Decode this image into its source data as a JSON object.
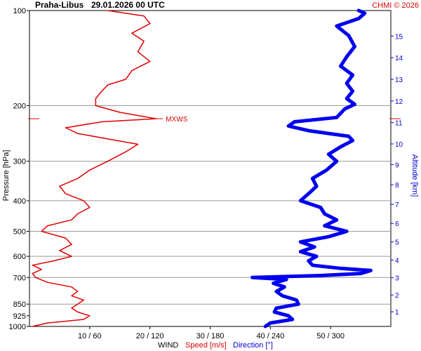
{
  "header": {
    "station": "Praha-Libus",
    "datetime": "29.01.2026 00 UTC",
    "credit": "CHMI © 2026"
  },
  "chart_data": {
    "type": "line",
    "title": "Praha-Libus   29.01.2026 00 UTC",
    "left_axis": {
      "label": "Pressure [hPa]",
      "scale": "log",
      "range": [
        1000,
        100
      ],
      "ticks": [
        100,
        200,
        300,
        400,
        500,
        600,
        700,
        850,
        925,
        1000
      ],
      "gridlines": [
        200,
        300,
        400,
        500,
        600,
        700,
        850
      ]
    },
    "right_axis": {
      "label": "Altitude [km]",
      "ticks": [
        1,
        2,
        3,
        4,
        5,
        6,
        7,
        8,
        9,
        10,
        11,
        12,
        13,
        14,
        15
      ]
    },
    "x_axis": {
      "prefix": "WIND",
      "speed_label": "Speed [m/s]",
      "direction_label": "Direction [°]",
      "ticks": [
        "10 / 60",
        "20 / 120",
        "30 / 180",
        "40 / 240",
        "50 / 300"
      ],
      "speed_range": [
        0,
        60
      ],
      "direction_range": [
        0,
        360
      ]
    },
    "annotation": {
      "label": "MXWS",
      "pressure": 220
    },
    "series": [
      {
        "name": "Speed [m/s]",
        "unit": "m/s",
        "color": "#e00000",
        "points": [
          [
            1000,
            0.5
          ],
          [
            975,
            3
          ],
          [
            950,
            9
          ],
          [
            925,
            10
          ],
          [
            900,
            8
          ],
          [
            875,
            7
          ],
          [
            850,
            8
          ],
          [
            825,
            9
          ],
          [
            800,
            7
          ],
          [
            775,
            8
          ],
          [
            750,
            7
          ],
          [
            725,
            3
          ],
          [
            700,
            1
          ],
          [
            680,
            0.5
          ],
          [
            660,
            2
          ],
          [
            640,
            0.5
          ],
          [
            620,
            4
          ],
          [
            600,
            7
          ],
          [
            575,
            5
          ],
          [
            550,
            7
          ],
          [
            525,
            6
          ],
          [
            500,
            2
          ],
          [
            480,
            3
          ],
          [
            460,
            7
          ],
          [
            440,
            8
          ],
          [
            420,
            10
          ],
          [
            400,
            9
          ],
          [
            380,
            6
          ],
          [
            360,
            5
          ],
          [
            340,
            8
          ],
          [
            320,
            10
          ],
          [
            300,
            13
          ],
          [
            280,
            16
          ],
          [
            265,
            18
          ],
          [
            255,
            13
          ],
          [
            245,
            8
          ],
          [
            235,
            6
          ],
          [
            225,
            12
          ],
          [
            220,
            21
          ],
          [
            210,
            15
          ],
          [
            200,
            11
          ],
          [
            190,
            11
          ],
          [
            180,
            12
          ],
          [
            172,
            13
          ],
          [
            165,
            16
          ],
          [
            155,
            17
          ],
          [
            145,
            20
          ],
          [
            135,
            18
          ],
          [
            125,
            19
          ],
          [
            118,
            17
          ],
          [
            110,
            20
          ],
          [
            104,
            19
          ],
          [
            100,
            13
          ]
        ]
      },
      {
        "name": "Direction [°]",
        "unit": "°",
        "color": "#0000ee",
        "points": [
          [
            1000,
            235
          ],
          [
            975,
            240
          ],
          [
            950,
            262
          ],
          [
            925,
            258
          ],
          [
            900,
            244
          ],
          [
            875,
            246
          ],
          [
            850,
            268
          ],
          [
            825,
            266
          ],
          [
            800,
            252
          ],
          [
            775,
            246
          ],
          [
            750,
            254
          ],
          [
            730,
            243
          ],
          [
            710,
            256
          ],
          [
            700,
            222
          ],
          [
            690,
            290
          ],
          [
            680,
            330
          ],
          [
            665,
            340
          ],
          [
            655,
            310
          ],
          [
            640,
            282
          ],
          [
            620,
            278
          ],
          [
            600,
            286
          ],
          [
            580,
            270
          ],
          [
            560,
            284
          ],
          [
            540,
            270
          ],
          [
            520,
            298
          ],
          [
            500,
            316
          ],
          [
            480,
            294
          ],
          [
            460,
            306
          ],
          [
            440,
            294
          ],
          [
            420,
            290
          ],
          [
            400,
            270
          ],
          [
            380,
            278
          ],
          [
            360,
            286
          ],
          [
            340,
            282
          ],
          [
            320,
            296
          ],
          [
            300,
            306
          ],
          [
            285,
            298
          ],
          [
            270,
            310
          ],
          [
            258,
            322
          ],
          [
            250,
            318
          ],
          [
            240,
            278
          ],
          [
            232,
            258
          ],
          [
            225,
            264
          ],
          [
            218,
            306
          ],
          [
            205,
            314
          ],
          [
            198,
            324
          ],
          [
            190,
            316
          ],
          [
            180,
            322
          ],
          [
            170,
            316
          ],
          [
            160,
            322
          ],
          [
            150,
            310
          ],
          [
            140,
            316
          ],
          [
            130,
            324
          ],
          [
            120,
            318
          ],
          [
            112,
            306
          ],
          [
            106,
            328
          ],
          [
            102,
            334
          ],
          [
            100,
            328
          ]
        ]
      }
    ]
  }
}
